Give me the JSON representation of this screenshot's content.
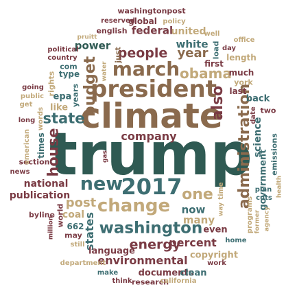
{
  "words": [
    {
      "text": "trump",
      "color": "c1"
    },
    {
      "text": "climate",
      "color": "c2"
    },
    {
      "text": "president",
      "color": "c2"
    },
    {
      "text": "2017",
      "color": "c5"
    },
    {
      "text": "new",
      "color": "c5"
    },
    {
      "text": "change",
      "color": "c3"
    },
    {
      "text": "administration",
      "color": "c2"
    },
    {
      "text": "march",
      "color": "c2"
    },
    {
      "text": "washington",
      "color": "c5"
    },
    {
      "text": "one",
      "color": "c3"
    },
    {
      "text": "energy",
      "color": "c4"
    },
    {
      "text": "people",
      "color": "c4"
    },
    {
      "text": "company",
      "color": "c4"
    },
    {
      "text": "year",
      "color": "c2"
    },
    {
      "text": "obama",
      "color": "c3"
    },
    {
      "text": "budget",
      "color": "c2"
    },
    {
      "text": "also",
      "color": "c4"
    },
    {
      "text": "state",
      "color": "c5"
    },
    {
      "text": "house",
      "color": "c4"
    },
    {
      "text": "national",
      "color": "c4"
    },
    {
      "text": "publication",
      "color": "c4"
    },
    {
      "text": "post",
      "color": "c3"
    },
    {
      "text": "states",
      "color": "c5"
    },
    {
      "text": "coal",
      "color": "c3"
    },
    {
      "text": "percent",
      "color": "c4"
    },
    {
      "text": "environmental",
      "color": "c4"
    },
    {
      "text": "documents",
      "color": "c4"
    },
    {
      "text": "clean",
      "color": "c5"
    },
    {
      "text": "science",
      "color": "c5"
    },
    {
      "text": "government",
      "color": "c5"
    },
    {
      "text": "many",
      "color": "c3"
    },
    {
      "text": "now",
      "color": "c5"
    },
    {
      "text": "even",
      "color": "c4"
    },
    {
      "text": "white",
      "color": "c5"
    },
    {
      "text": "power",
      "color": "c1"
    },
    {
      "text": "federal",
      "color": "c4"
    },
    {
      "text": "united",
      "color": "c3"
    },
    {
      "text": "global",
      "color": "c4"
    },
    {
      "text": "washingtonpost",
      "color": "c4"
    },
    {
      "text": "reserved",
      "color": "c4"
    },
    {
      "text": "policy",
      "color": "c3"
    },
    {
      "text": "english",
      "color": "c4"
    },
    {
      "text": "well",
      "color": "c3"
    },
    {
      "text": "political",
      "color": "c4"
    },
    {
      "text": "country",
      "color": "c4"
    },
    {
      "text": "com",
      "color": "c5"
    },
    {
      "text": "type",
      "color": "c5"
    },
    {
      "text": "epa",
      "color": "c5"
    },
    {
      "text": "like",
      "color": "c3"
    },
    {
      "text": "rights",
      "color": "c3"
    },
    {
      "text": "first",
      "color": "c4"
    },
    {
      "text": "load",
      "color": "c5"
    },
    {
      "text": "length",
      "color": "c3"
    },
    {
      "text": "day",
      "color": "c4"
    },
    {
      "text": "office",
      "color": "c3"
    },
    {
      "text": "york",
      "color": "c3"
    },
    {
      "text": "much",
      "color": "c4"
    },
    {
      "text": "back",
      "color": "c5"
    },
    {
      "text": "last",
      "color": "c4"
    },
    {
      "text": "two",
      "color": "c4"
    },
    {
      "text": "date",
      "color": "c4"
    },
    {
      "text": "emissions",
      "color": "c5"
    },
    {
      "text": "health",
      "color": "c3"
    },
    {
      "text": "plan",
      "color": "c5"
    },
    {
      "text": "cuts",
      "color": "c5"
    },
    {
      "text": "programs",
      "color": "c3"
    },
    {
      "text": "former",
      "color": "c3"
    },
    {
      "text": "agency",
      "color": "c3"
    },
    {
      "text": "home",
      "color": "c5"
    },
    {
      "text": "way",
      "color": "c3"
    },
    {
      "text": "time",
      "color": "c3"
    },
    {
      "text": "copyright",
      "color": "c3"
    },
    {
      "text": "work",
      "color": "c4"
    },
    {
      "text": "research",
      "color": "c4"
    },
    {
      "text": "california",
      "color": "c3"
    },
    {
      "text": "think",
      "color": "c4"
    },
    {
      "text": "make",
      "color": "c5"
    },
    {
      "text": "department",
      "color": "c3"
    },
    {
      "text": "language",
      "color": "c4"
    },
    {
      "text": "662",
      "color": "c5"
    },
    {
      "text": "may",
      "color": "c4"
    },
    {
      "text": "still",
      "color": "c3"
    },
    {
      "text": "million",
      "color": "c4"
    },
    {
      "text": "byline",
      "color": "c4"
    },
    {
      "text": "world",
      "color": "c4"
    },
    {
      "text": "section",
      "color": "c4"
    },
    {
      "text": "news",
      "color": "c4"
    },
    {
      "text": "american",
      "color": "c3"
    },
    {
      "text": "times",
      "color": "c5"
    },
    {
      "text": "words",
      "color": "c3"
    },
    {
      "text": "long",
      "color": "c4"
    },
    {
      "text": "public",
      "color": "c3"
    },
    {
      "text": "going",
      "color": "c4"
    },
    {
      "text": "get",
      "color": "c3"
    },
    {
      "text": "years",
      "color": "c5"
    },
    {
      "text": "gas",
      "color": "c4"
    },
    {
      "text": "water",
      "color": "c3"
    },
    {
      "text": "just",
      "color": "c2"
    },
    {
      "text": "pruitt",
      "color": "c3"
    }
  ]
}
